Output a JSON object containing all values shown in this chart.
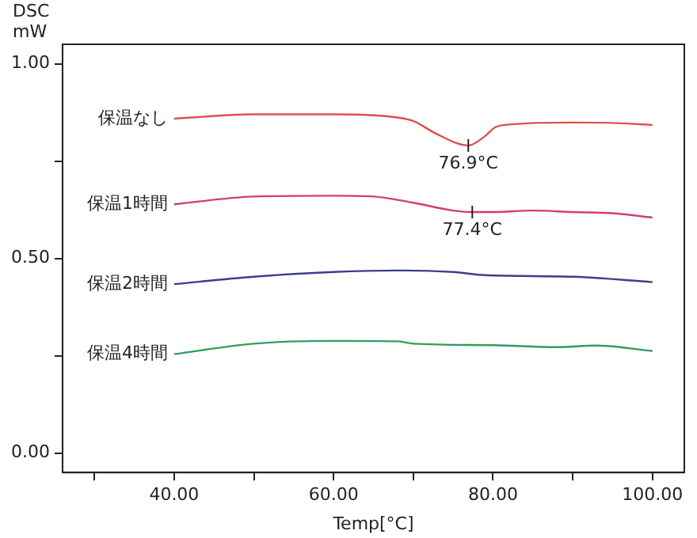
{
  "chart_data": {
    "type": "line",
    "xlabel": "Temp[°C]",
    "ylabel": "DSC mW",
    "xlim": [
      26,
      104
    ],
    "ylim": [
      -0.05,
      1.05
    ],
    "xticks": [
      {
        "value": 30,
        "label": null
      },
      {
        "value": 40,
        "label": "40.00"
      },
      {
        "value": 50,
        "label": null
      },
      {
        "value": 60,
        "label": "60.00"
      },
      {
        "value": 70,
        "label": null
      },
      {
        "value": 80,
        "label": "80.00"
      },
      {
        "value": 90,
        "label": null
      },
      {
        "value": 100,
        "label": "100.00"
      }
    ],
    "yticks": [
      {
        "value": 0,
        "label": "0.00"
      },
      {
        "value": 0.25,
        "label": null
      },
      {
        "value": 0.5,
        "label": "0.50"
      },
      {
        "value": 0.75,
        "label": null
      },
      {
        "value": 1,
        "label": "1.00"
      }
    ],
    "grid": false,
    "legend": false,
    "marker": "none",
    "line_style": "solid",
    "series": [
      {
        "name": "保温なし",
        "color": "#e05050",
        "x": [
          40,
          50,
          60,
          68,
          70,
          73,
          76.9,
          79,
          80.3,
          82,
          90,
          95,
          100
        ],
        "values": [
          0.859,
          0.87,
          0.87,
          0.862,
          0.853,
          0.819,
          0.79,
          0.814,
          0.837,
          0.844,
          0.849,
          0.848,
          0.843
        ]
      },
      {
        "name": "保温1時間",
        "color": "#d63a7a",
        "x": [
          40,
          50,
          60,
          65,
          70,
          75,
          77.4,
          80,
          85,
          90,
          95,
          100
        ],
        "values": [
          0.639,
          0.659,
          0.661,
          0.659,
          0.643,
          0.623,
          0.619,
          0.619,
          0.623,
          0.619,
          0.616,
          0.605
        ]
      },
      {
        "name": "保温2時間",
        "color": "#3a3f8a",
        "x": [
          40,
          50,
          60,
          68,
          75,
          79,
          90,
          100
        ],
        "values": [
          0.434,
          0.453,
          0.465,
          0.469,
          0.465,
          0.457,
          0.453,
          0.439
        ]
      },
      {
        "name": "保温4時間",
        "color": "#2e9e5e",
        "x": [
          40,
          50,
          60,
          68,
          70,
          80,
          88,
          93,
          100
        ],
        "values": [
          0.254,
          0.281,
          0.288,
          0.287,
          0.281,
          0.277,
          0.272,
          0.276,
          0.262
        ]
      }
    ],
    "annotations": [
      {
        "text": "76.9°C",
        "x": 76.9,
        "y": 0.79
      },
      {
        "text": "77.4°C",
        "x": 77.4,
        "y": 0.619
      }
    ]
  }
}
